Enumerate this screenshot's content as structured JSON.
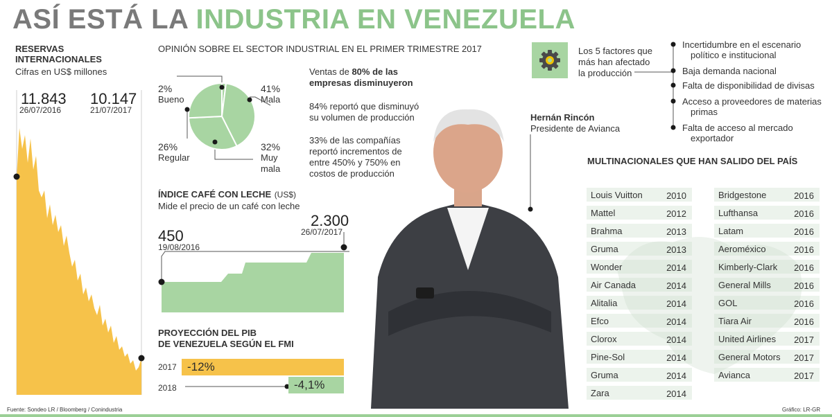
{
  "title": {
    "part1": "ASÍ ESTÁ LA",
    "part2": "INDUSTRIA EN VENEZUELA"
  },
  "reserves": {
    "title_line1": "RESERVAS",
    "title_line2": "INTERNACIONALES",
    "subtitle": "Cifras en US$ millones",
    "start_value": "11.843",
    "start_date": "26/07/2016",
    "end_value": "10.147",
    "end_date": "21/07/2017",
    "color": "#f6c24a"
  },
  "opinion": {
    "title": "OPINIÓN SOBRE EL SECTOR INDUSTRIAL EN EL PRIMER TRIMESTRE 2017",
    "slices": [
      {
        "pct": "2%",
        "label": "Bueno",
        "value": 2
      },
      {
        "pct": "41%",
        "label": "Mala",
        "value": 41
      },
      {
        "pct": "32%",
        "label_line1": "Muy",
        "label_line2": "mala",
        "value": 32
      },
      {
        "pct": "26%",
        "label": "Regular",
        "value": 26
      }
    ],
    "pie_color": "#a8d5a2",
    "stat1_pre": "Ventas de ",
    "stat1_bold1": "80% de las",
    "stat1_bold2": "empresas disminuyeron",
    "stat2_line1": "84% reportó que disminuyó",
    "stat2_line2": "su volumen de producción",
    "stat3_line1": "33% de las compañías",
    "stat3_line2": "reportó incrementos de",
    "stat3_line3": "entre 450% y 750% en",
    "stat3_line4": "costos de producción"
  },
  "cafe": {
    "title": "ÍNDICE CAFÉ CON LECHE",
    "unit": "(US$)",
    "subtitle": "Mide el precio de un café con leche",
    "start_value": "450",
    "start_date": "19/08/2016",
    "end_value": "2.300",
    "end_date": "26/07/2017"
  },
  "pib": {
    "title_line1": "PROYECCIÓN DEL PIB",
    "title_line2": "DE VENEZUELA SEGÚN EL FMI",
    "rows": [
      {
        "year": "2017",
        "value": "-12%"
      },
      {
        "year": "2018",
        "value": "-4,1%"
      }
    ]
  },
  "person": {
    "name": "Hernán Rincón",
    "role": "Presidente de Avianca"
  },
  "factors": {
    "intro_line1": "Los 5 factores que",
    "intro_line2": "más han afectado",
    "intro_line3": "la producción",
    "icon": "gear-icon",
    "items": [
      {
        "line1": "Incertidumbre en el escenario",
        "line2": "político e institucional"
      },
      {
        "line1": "Baja demanda nacional",
        "line2": ""
      },
      {
        "line1": "Falta de disponibilidad de divisas",
        "line2": ""
      },
      {
        "line1": "Acceso a proveedores de materias",
        "line2": "primas"
      },
      {
        "line1": "Falta de acceso al mercado",
        "line2": "exportador"
      }
    ]
  },
  "multinationals": {
    "title": "MULTINACIONALES QUE HAN SALIDO DEL PAÍS",
    "left": [
      {
        "name": "Louis Vuitton",
        "year": "2010"
      },
      {
        "name": "Mattel",
        "year": "2012"
      },
      {
        "name": "Brahma",
        "year": "2013"
      },
      {
        "name": "Gruma",
        "year": "2013"
      },
      {
        "name": "Wonder",
        "year": "2014"
      },
      {
        "name": "Air Canada",
        "year": "2014"
      },
      {
        "name": "Alitalia",
        "year": "2014"
      },
      {
        "name": "Efco",
        "year": "2014"
      },
      {
        "name": "Clorox",
        "year": "2014"
      },
      {
        "name": "Pine-Sol",
        "year": "2014"
      },
      {
        "name": "Gruma",
        "year": "2014"
      },
      {
        "name": "Zara",
        "year": "2014"
      }
    ],
    "right": [
      {
        "name": "Bridgestone",
        "year": "2016"
      },
      {
        "name": "Lufthansa",
        "year": "2016"
      },
      {
        "name": "Latam",
        "year": "2016"
      },
      {
        "name": "Aeroméxico",
        "year": "2016"
      },
      {
        "name": "Kimberly-Clark",
        "year": "2016"
      },
      {
        "name": "General Mills",
        "year": "2016"
      },
      {
        "name": "GOL",
        "year": "2016"
      },
      {
        "name": "Tiara Air",
        "year": "2016"
      },
      {
        "name": "United Airlines",
        "year": "2017"
      },
      {
        "name": "General Motors",
        "year": "2017"
      },
      {
        "name": "Avianca",
        "year": "2017"
      }
    ]
  },
  "footer": {
    "source": "Fuente: Sondeo LR / Bloomberg / Conindustria",
    "credit": "Gráfico: LR-GR"
  }
}
